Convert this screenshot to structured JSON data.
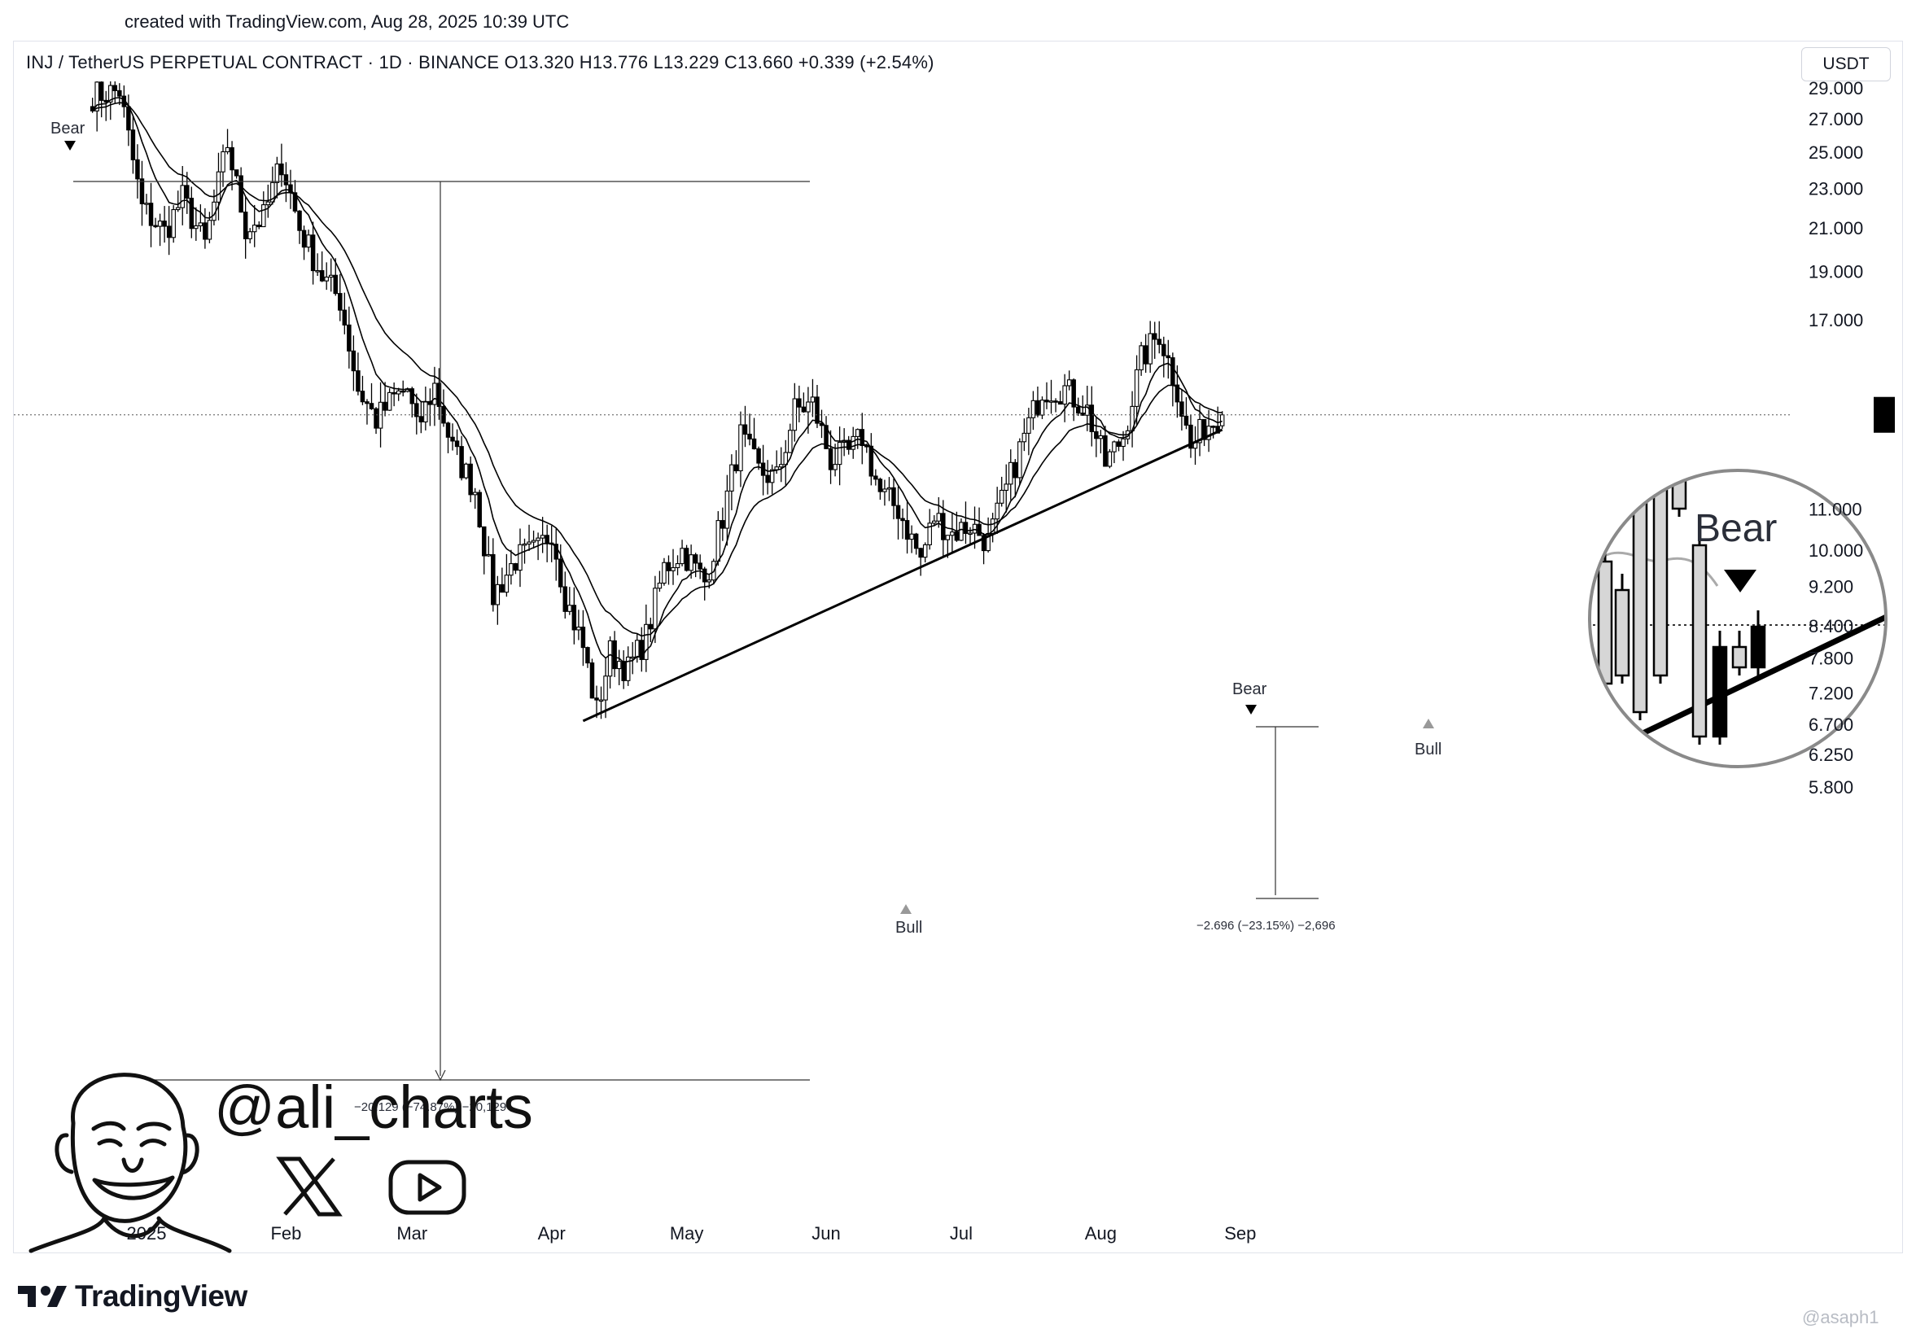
{
  "header": {
    "created_text": "created with TradingView.com, Aug 28, 2025 10:39 UTC"
  },
  "legend": {
    "text": "INJ / TetherUS PERPETUAL CONTRACT · 1D · BINANCE  O13.320  H13.776  L13.229  C13.660  +0.339 (+2.54%)"
  },
  "currency": "USDT",
  "chart_data": {
    "type": "candlestick",
    "symbol": "INJ / TetherUS PERPETUAL CONTRACT",
    "interval": "1D",
    "exchange": "BINANCE",
    "scale": "log",
    "last": {
      "open": 13.32,
      "high": 13.776,
      "low": 13.229,
      "close": 13.66,
      "change": 0.339,
      "change_pct": 2.54
    },
    "y_ticks": [
      29.0,
      27.0,
      25.0,
      23.0,
      21.0,
      19.0,
      17.0,
      11.0,
      10.0,
      9.2,
      8.4,
      7.8,
      7.2,
      6.7,
      6.25,
      5.8
    ],
    "y_tick_labels": [
      "29.000",
      "27.000",
      "25.000",
      "23.000",
      "21.000",
      "19.000",
      "17.000",
      "11.000",
      "10.000",
      "9.200",
      "8.400",
      "7.800",
      "7.200",
      "6.700",
      "6.250",
      "5.800"
    ],
    "x_labels": [
      "2025",
      "Feb",
      "Mar",
      "Apr",
      "May",
      "Jun",
      "Jul",
      "Aug",
      "Sep"
    ],
    "price_path": [
      [
        "2024-12-20",
        28.5
      ],
      [
        "2024-12-26",
        28.8
      ],
      [
        "2024-12-31",
        22.0
      ],
      [
        "2025-01-05",
        20.8
      ],
      [
        "2025-01-09",
        22.5
      ],
      [
        "2025-01-14",
        20.2
      ],
      [
        "2025-01-19",
        25.5
      ],
      [
        "2025-01-23",
        21.0
      ],
      [
        "2025-01-27",
        21.5
      ],
      [
        "2025-01-31",
        24.5
      ],
      [
        "2025-02-04",
        21.0
      ],
      [
        "2025-02-09",
        18.8
      ],
      [
        "2025-02-13",
        17.8
      ],
      [
        "2025-02-17",
        14.5
      ],
      [
        "2025-02-21",
        13.5
      ],
      [
        "2025-02-25",
        14.2
      ],
      [
        "2025-02-28",
        14.5
      ],
      [
        "2025-03-02",
        13.2
      ],
      [
        "2025-03-06",
        14.6
      ],
      [
        "2025-03-10",
        12.6
      ],
      [
        "2025-03-15",
        11.5
      ],
      [
        "2025-03-19",
        9.0
      ],
      [
        "2025-03-24",
        9.8
      ],
      [
        "2025-03-29",
        10.0
      ],
      [
        "2025-04-01",
        10.5
      ],
      [
        "2025-04-04",
        9.0
      ],
      [
        "2025-04-08",
        8.0
      ],
      [
        "2025-04-11",
        6.9
      ],
      [
        "2025-04-14",
        7.9
      ],
      [
        "2025-04-18",
        7.6
      ],
      [
        "2025-04-22",
        8.2
      ],
      [
        "2025-04-26",
        9.6
      ],
      [
        "2025-04-30",
        10.0
      ],
      [
        "2025-05-05",
        9.3
      ],
      [
        "2025-05-09",
        10.8
      ],
      [
        "2025-05-13",
        13.0
      ],
      [
        "2025-05-17",
        12.0
      ],
      [
        "2025-05-21",
        11.8
      ],
      [
        "2025-05-25",
        13.8
      ],
      [
        "2025-05-29",
        14.0
      ],
      [
        "2025-06-02",
        12.3
      ],
      [
        "2025-06-06",
        12.5
      ],
      [
        "2025-06-09",
        13.0
      ],
      [
        "2025-06-13",
        11.4
      ],
      [
        "2025-06-17",
        11.0
      ],
      [
        "2025-06-22",
        9.8
      ],
      [
        "2025-06-25",
        10.8
      ],
      [
        "2025-06-29",
        10.4
      ],
      [
        "2025-07-03",
        10.6
      ],
      [
        "2025-07-07",
        10.2
      ],
      [
        "2025-07-11",
        11.5
      ],
      [
        "2025-07-15",
        13.0
      ],
      [
        "2025-07-19",
        14.5
      ],
      [
        "2025-07-24",
        14.5
      ],
      [
        "2025-07-29",
        13.8
      ],
      [
        "2025-08-02",
        12.2
      ],
      [
        "2025-08-06",
        13.0
      ],
      [
        "2025-08-10",
        15.5
      ],
      [
        "2025-08-14",
        16.5
      ],
      [
        "2025-08-18",
        14.5
      ],
      [
        "2025-08-21",
        12.6
      ],
      [
        "2025-08-24",
        13.3
      ],
      [
        "2025-08-28",
        13.66
      ]
    ],
    "annotations": {
      "bear_1": "Bear",
      "bear_2": "Bear",
      "bull_1": "Bull",
      "bull_2": "Bull",
      "measure_1": "−20.129 (−74.87%) −20,129",
      "measure_2": "−2.696 (−23.15%) −2,696",
      "zoom_label": "Bear"
    },
    "trendline": {
      "from": [
        "2025-04-08",
        6.75
      ],
      "to": [
        "2025-08-28",
        13.2
      ]
    },
    "price_line": 13.66,
    "grid": false
  },
  "author": {
    "handle": "@ali_charts"
  },
  "brand": {
    "name": "TradingView"
  },
  "watermark": "@asaph1"
}
